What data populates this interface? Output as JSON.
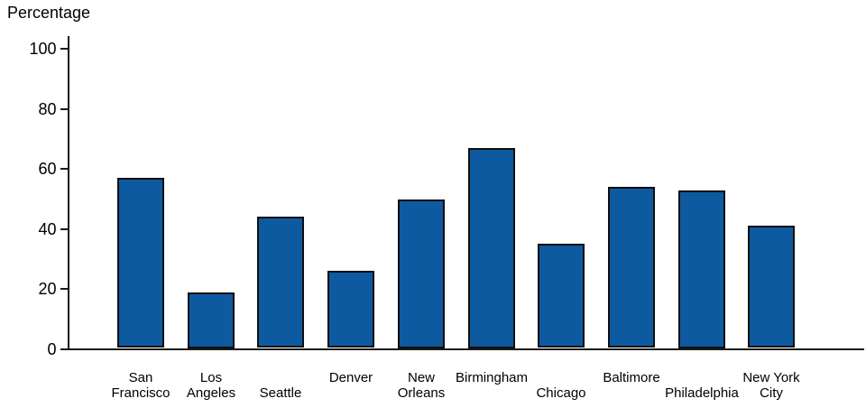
{
  "chart_data": {
    "type": "bar",
    "title": "Percentage",
    "ylabel": "Percentage",
    "xlabel": "",
    "categories": [
      "San Francisco",
      "Los Angeles",
      "Seattle",
      "Denver",
      "New Orleans",
      "Birmingham",
      "Chicago",
      "Baltimore",
      "Philadelphia",
      "New York City"
    ],
    "values": [
      57,
      19,
      44,
      26,
      50,
      67,
      35,
      54,
      53,
      41
    ],
    "category_label_lines": [
      [
        "San",
        "Francisco"
      ],
      [
        "Los",
        "Angeles"
      ],
      [
        "Seattle"
      ],
      [
        "Denver"
      ],
      [
        "New",
        "Orleans"
      ],
      [
        "Birmingham"
      ],
      [
        "Chicago"
      ],
      [
        "Baltimore"
      ],
      [
        "Philadelphia"
      ],
      [
        "New York",
        "City"
      ]
    ],
    "category_label_row": [
      0,
      0,
      1,
      0,
      0,
      0,
      1,
      0,
      1,
      0
    ],
    "yticks": [
      0,
      20,
      40,
      60,
      80,
      100
    ],
    "ylim": [
      0,
      100
    ],
    "grid": false,
    "legend": "none",
    "bar_color": "#0e5aa0",
    "bar_border_color": "#0f0f0f",
    "axis_color": "#1a1a1a",
    "background_color": "#ffffff"
  }
}
